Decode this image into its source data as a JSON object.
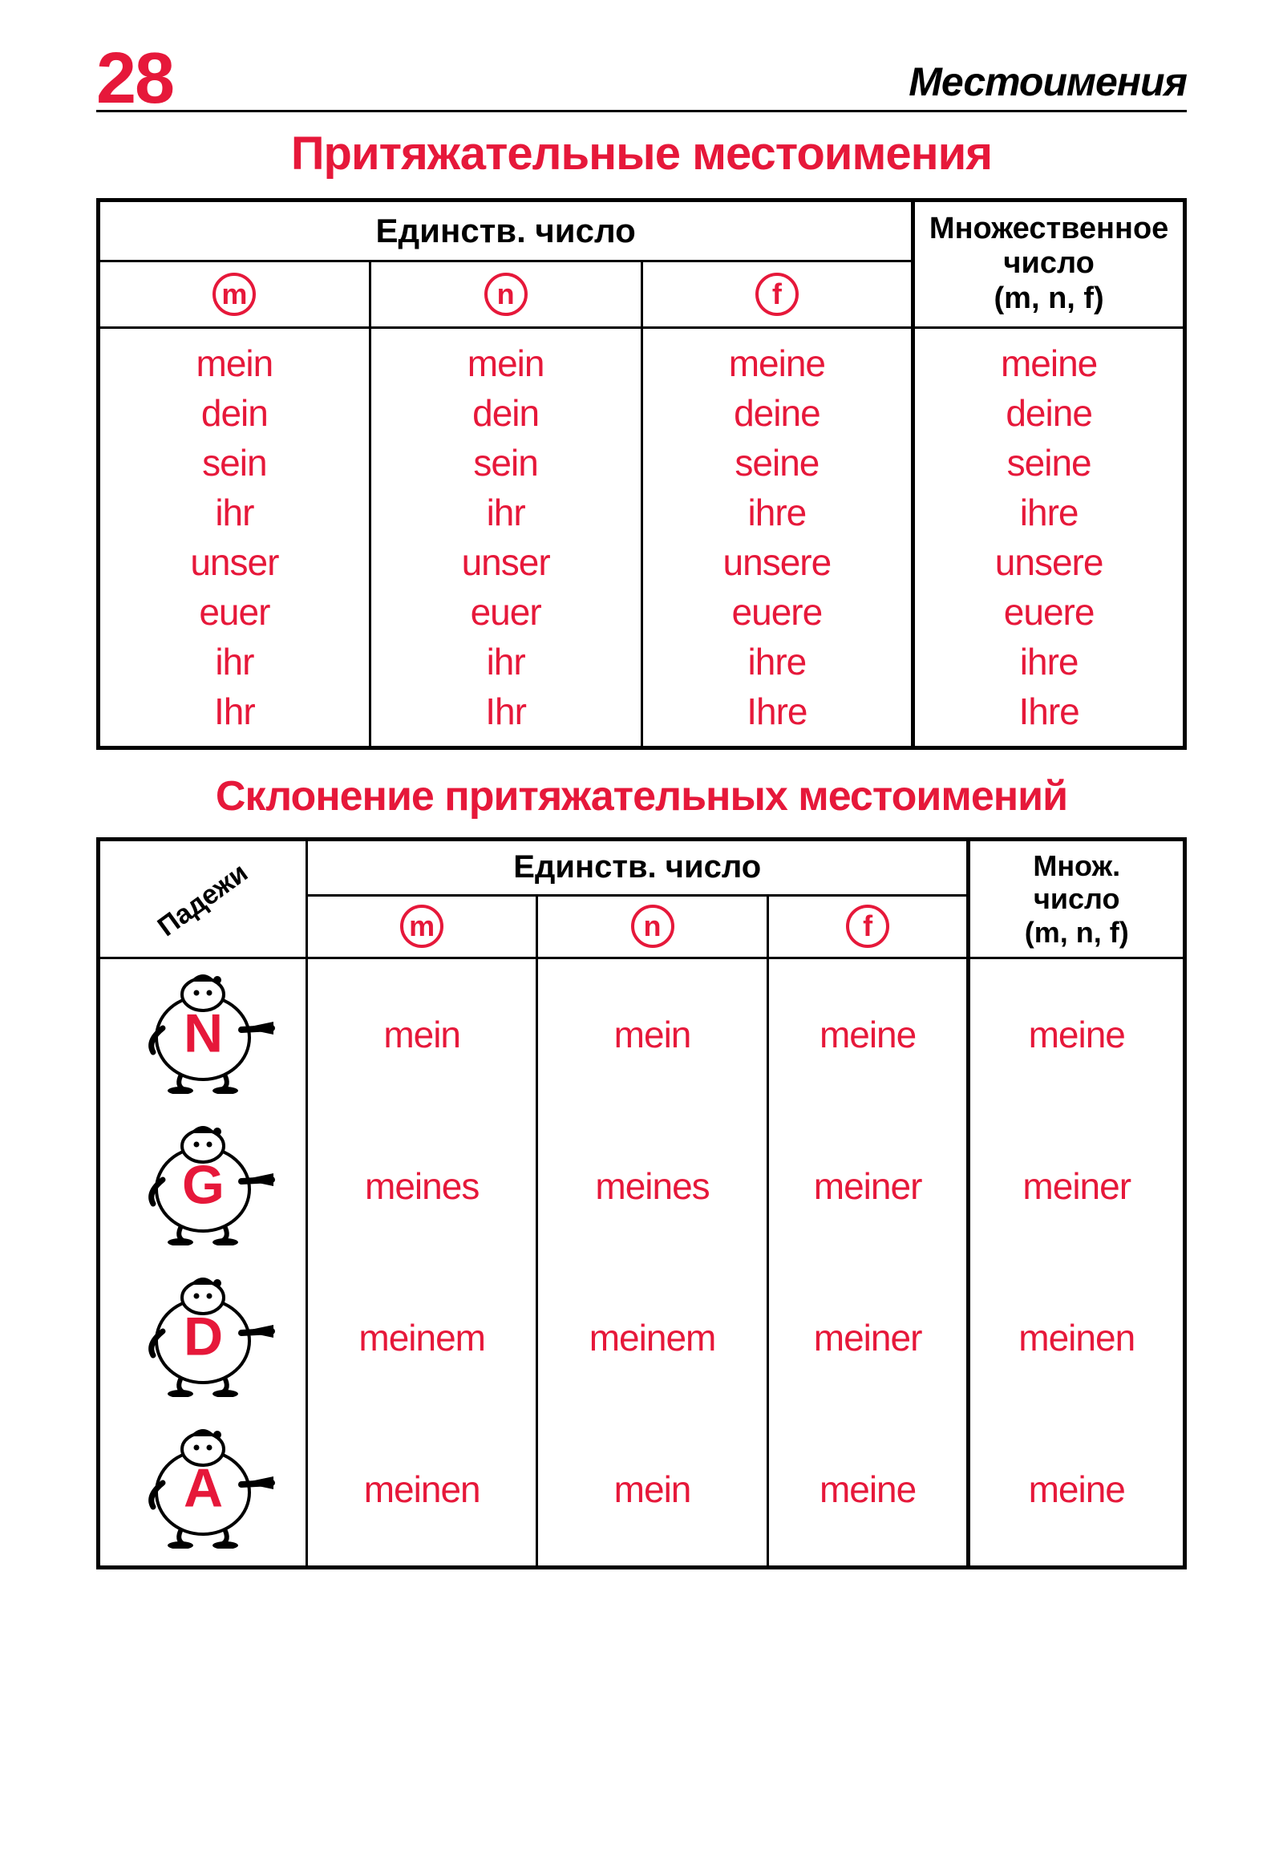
{
  "page": {
    "number": "28",
    "section": "Местоимения"
  },
  "colors": {
    "accent": "#e6183a",
    "text": "#000000",
    "bg": "#ffffff"
  },
  "title1": "Притяжательные местоимения",
  "title2": "Склонение притяжательных местоимений",
  "table1": {
    "type": "table",
    "singular_header": "Единств. число",
    "plural_header_line1": "Множественное",
    "plural_header_line2": "число",
    "plural_header_line3": "(m, n, f)",
    "genders": [
      "m",
      "n",
      "f"
    ],
    "rows": [
      {
        "m": "mein",
        "n": "mein",
        "f": "meine",
        "pl": "meine"
      },
      {
        "m": "dein",
        "n": "dein",
        "f": "deine",
        "pl": "deine"
      },
      {
        "m": "sein",
        "n": "sein",
        "f": "seine",
        "pl": "seine"
      },
      {
        "m": "ihr",
        "n": "ihr",
        "f": "ihre",
        "pl": "ihre"
      },
      {
        "m": "unser",
        "n": "unser",
        "f": "unsere",
        "pl": "unsere"
      },
      {
        "m": "euer",
        "n": "euer",
        "f": "euere",
        "pl": "euere"
      },
      {
        "m": "ihr",
        "n": "ihr",
        "f": "ihre",
        "pl": "ihre"
      },
      {
        "m": "Ihr",
        "n": "Ihr",
        "f": "Ihre",
        "pl": "Ihre"
      }
    ]
  },
  "table2": {
    "type": "table",
    "cases_label": "Падежи",
    "singular_header": "Единств. число",
    "plural_header_line1": "Множ.",
    "plural_header_line2": "число",
    "plural_header_line3": "(m, n, f)",
    "genders": [
      "m",
      "n",
      "f"
    ],
    "rows": [
      {
        "case": "N",
        "m": "mein",
        "n": "mein",
        "f": "meine",
        "pl": "meine"
      },
      {
        "case": "G",
        "m": "meines",
        "n": "meines",
        "f": "meiner",
        "pl": "meiner"
      },
      {
        "case": "D",
        "m": "meinem",
        "n": "meinem",
        "f": "meiner",
        "pl": "meinen"
      },
      {
        "case": "A",
        "m": "meinen",
        "n": "mein",
        "f": "meine",
        "pl": "meine"
      }
    ]
  },
  "typography": {
    "page_num_fontsize": 90,
    "section_fontsize": 50,
    "title_fontsize": 58,
    "cell_fontsize": 46,
    "header_fontsize": 42,
    "case_letter_fontsize": 68
  }
}
